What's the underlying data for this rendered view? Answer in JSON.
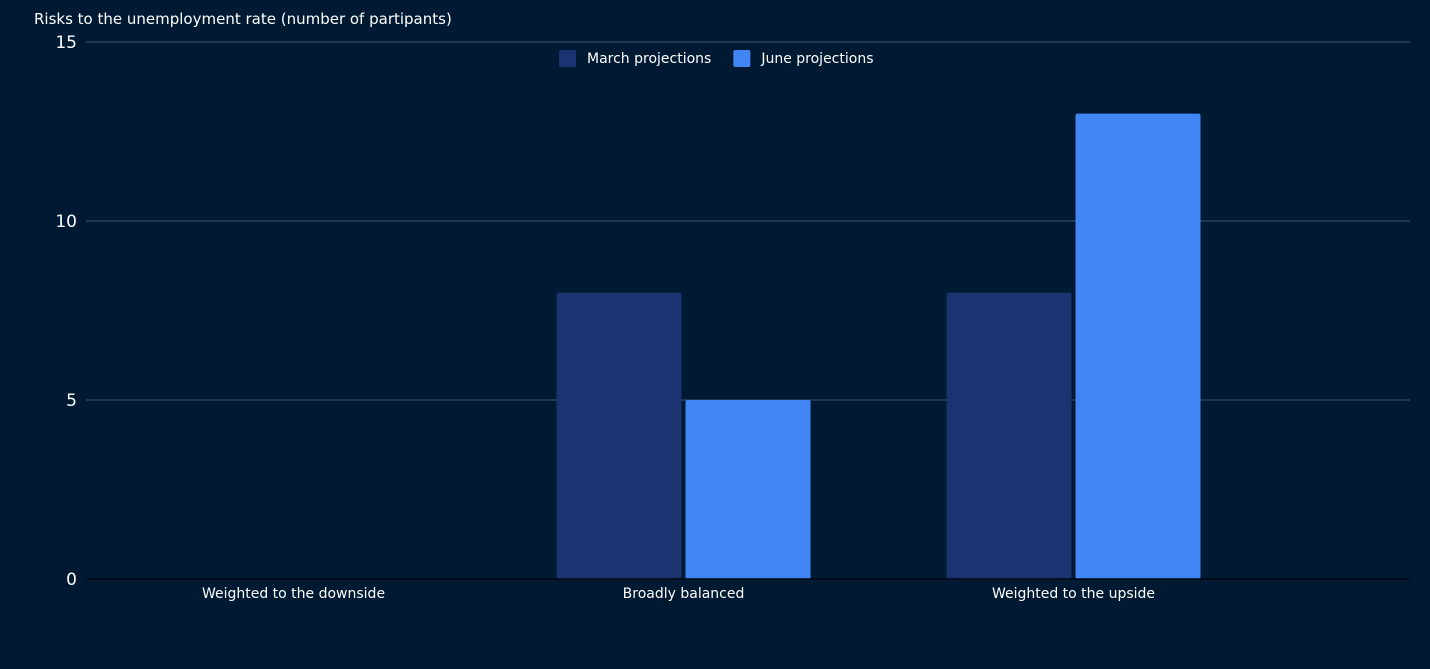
{
  "chart_data": {
    "type": "bar",
    "title": "Risks to the unemployment rate (number of partipants)",
    "xlabel": "",
    "ylabel": "",
    "categories": [
      "Weighted to the downside",
      "Broadly balanced",
      "Weighted to the upside"
    ],
    "series": [
      {
        "name": "March projections",
        "values": [
          0,
          8,
          8
        ],
        "color": "#1b3370"
      },
      {
        "name": "June projections",
        "values": [
          0,
          5,
          13
        ],
        "color": "#4285f4"
      }
    ],
    "ylim": [
      0,
      15
    ],
    "yticks": [
      0,
      5,
      10,
      15
    ],
    "grid": true,
    "legend_position": "top-center"
  }
}
